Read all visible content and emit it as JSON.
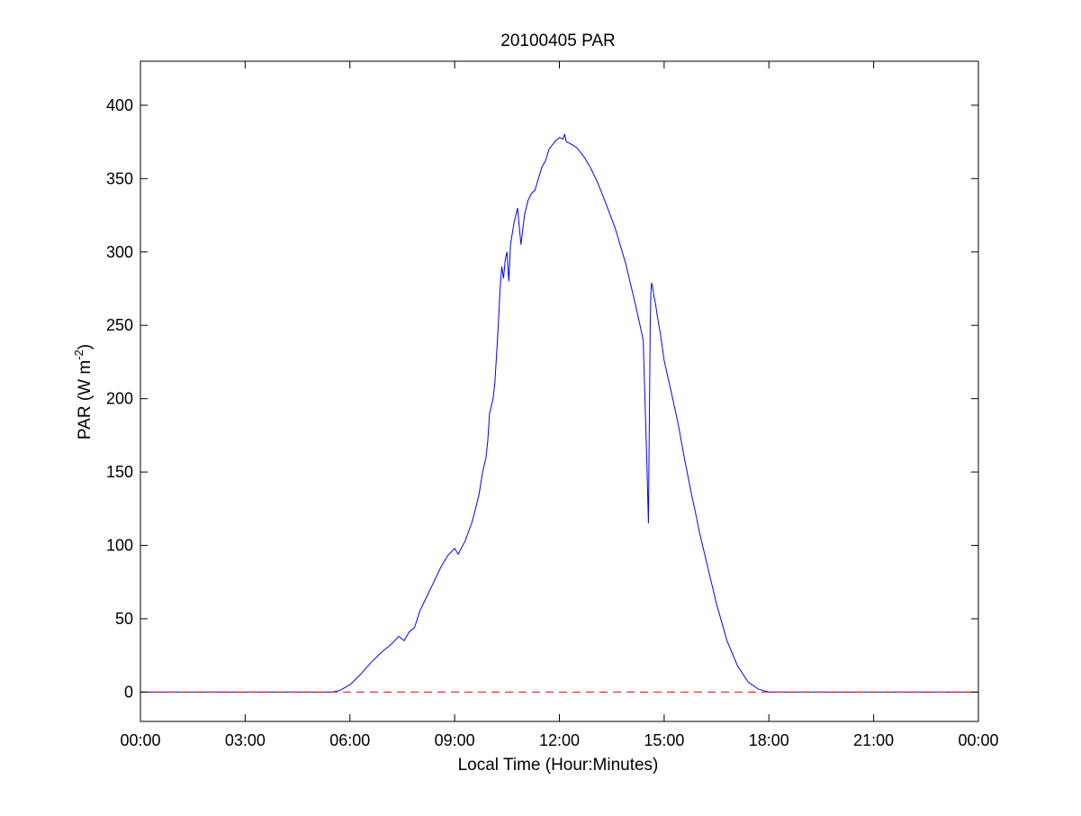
{
  "chart_data": {
    "type": "line",
    "title": "20100405 PAR",
    "xlabel": "Local Time (Hour:Minutes)",
    "ylabel": {
      "main": "PAR (W m",
      "superscript": "-2",
      "close": ")"
    },
    "xlim": [
      0,
      24
    ],
    "ylim": [
      -20,
      430
    ],
    "x_ticks": [
      0,
      3,
      6,
      9,
      12,
      15,
      18,
      21,
      24
    ],
    "x_tick_labels": [
      "00:00",
      "03:00",
      "06:00",
      "09:00",
      "12:00",
      "15:00",
      "18:00",
      "21:00",
      "00:00"
    ],
    "y_ticks": [
      0,
      50,
      100,
      150,
      200,
      250,
      300,
      350,
      400
    ],
    "y_tick_labels": [
      "0",
      "50",
      "100",
      "150",
      "200",
      "250",
      "300",
      "350",
      "400"
    ],
    "grid": false,
    "series": [
      {
        "color": "#0000ff",
        "style": "solid",
        "x_unit": "hours",
        "x": [
          0,
          5.5,
          5.7,
          6.0,
          6.3,
          6.6,
          6.9,
          7.2,
          7.4,
          7.55,
          7.7,
          7.85,
          8.0,
          8.2,
          8.4,
          8.6,
          8.8,
          9.0,
          9.1,
          9.3,
          9.5,
          9.6,
          9.7,
          9.8,
          9.9,
          9.95,
          10.0,
          10.05,
          10.1,
          10.15,
          10.2,
          10.25,
          10.3,
          10.35,
          10.4,
          10.45,
          10.5,
          10.55,
          10.6,
          10.7,
          10.8,
          10.9,
          11.0,
          11.1,
          11.2,
          11.3,
          11.4,
          11.5,
          11.6,
          11.7,
          11.8,
          11.9,
          12.0,
          12.1,
          12.15,
          12.2,
          12.3,
          12.5,
          12.7,
          12.9,
          13.1,
          13.3,
          13.6,
          13.9,
          14.2,
          14.4,
          14.5,
          14.55,
          14.6,
          14.62,
          14.64,
          14.66,
          14.68,
          14.7,
          14.75,
          14.8,
          14.9,
          15.0,
          15.2,
          15.4,
          15.6,
          15.8,
          15.9,
          16.0,
          16.2,
          16.5,
          16.8,
          17.1,
          17.4,
          17.7,
          18.0,
          18.3,
          18.5,
          18.7,
          19.0,
          24
        ],
        "y": [
          0,
          0,
          1,
          5,
          12,
          20,
          27,
          33,
          38,
          35,
          41,
          44,
          55,
          65,
          75,
          85,
          93,
          98,
          94,
          103,
          116,
          125,
          135,
          150,
          160,
          172,
          190,
          195,
          200,
          210,
          230,
          250,
          275,
          290,
          282,
          295,
          300,
          280,
          305,
          320,
          330,
          305,
          325,
          335,
          340,
          342,
          350,
          358,
          362,
          370,
          373,
          376,
          378,
          377,
          380,
          375,
          374,
          371,
          365,
          357,
          347,
          335,
          316,
          292,
          262,
          240,
          160,
          115,
          250,
          272,
          279,
          277,
          274,
          271,
          265,
          257,
          243,
          226,
          205,
          183,
          157,
          133,
          122,
          110,
          90,
          60,
          35,
          18,
          7,
          2,
          0,
          0,
          0,
          0,
          0,
          0
        ]
      },
      {
        "color": "#ff0000",
        "style": "dashed",
        "x": [
          0,
          24
        ],
        "y": [
          0,
          0
        ]
      }
    ]
  }
}
